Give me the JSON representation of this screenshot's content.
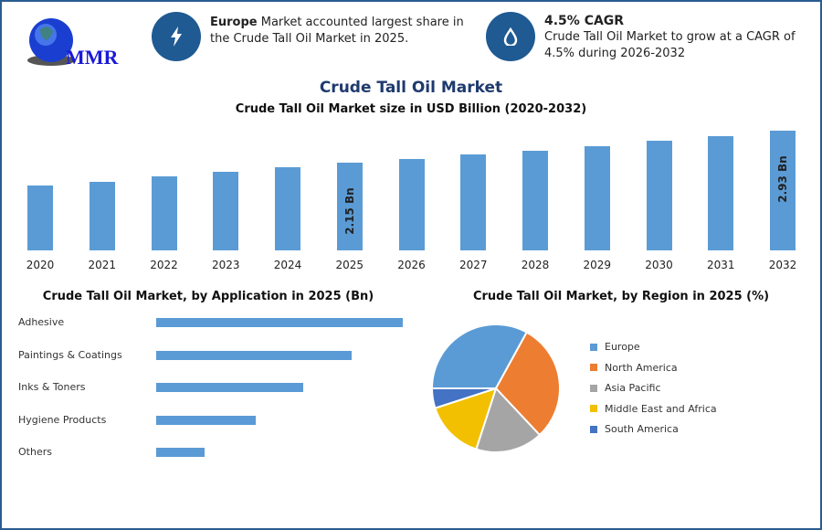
{
  "logo": {
    "text": "MMR"
  },
  "highlights": [
    {
      "icon": "lightning-icon",
      "bold": "Europe",
      "text": " Market accounted largest share in the Crude Tall Oil Market in 2025."
    },
    {
      "icon": "oil-drop-icon",
      "bold": "4.5% CAGR",
      "text": "Crude Tall Oil Market to grow at a CAGR of 4.5% during 2026-2032"
    }
  ],
  "colors": {
    "brand": "#1f5a92",
    "bar": "#5b9bd5",
    "title": "#1f3a6e"
  },
  "chart_data": [
    {
      "type": "bar",
      "title": "Crude Tall Oil Market",
      "subtitle": "Crude Tall Oil Market size in USD Billion (2020-2032)",
      "categories": [
        "2020",
        "2021",
        "2022",
        "2023",
        "2024",
        "2025",
        "2026",
        "2027",
        "2028",
        "2029",
        "2030",
        "2031",
        "2032"
      ],
      "values": [
        1.59,
        1.68,
        1.81,
        1.93,
        2.04,
        2.15,
        2.25,
        2.35,
        2.45,
        2.56,
        2.68,
        2.8,
        2.93
      ],
      "data_labels": {
        "2025": "2.15 Bn",
        "2032": "2.93 Bn"
      },
      "ylim": [
        0,
        3.0
      ]
    },
    {
      "type": "bar",
      "orientation": "horizontal",
      "title": "Crude Tall Oil Market, by Application in 2025 (Bn)",
      "categories": [
        "Adhesive",
        "Paintings & Coatings",
        "Inks & Toners",
        "Hygiene Products",
        "Others"
      ],
      "values": [
        0.72,
        0.57,
        0.43,
        0.29,
        0.14
      ]
    },
    {
      "type": "pie",
      "title": "Crude Tall Oil Market, by Region in 2025 (%)",
      "categories": [
        "Europe",
        "North America",
        "Asia Pacific",
        "Middle East and Africa",
        "South America"
      ],
      "values": [
        33,
        30,
        17,
        15,
        5
      ],
      "colors": [
        "#5b9bd5",
        "#ed7d31",
        "#a5a5a5",
        "#f2c000",
        "#4472c4"
      ],
      "legend": "right"
    }
  ]
}
